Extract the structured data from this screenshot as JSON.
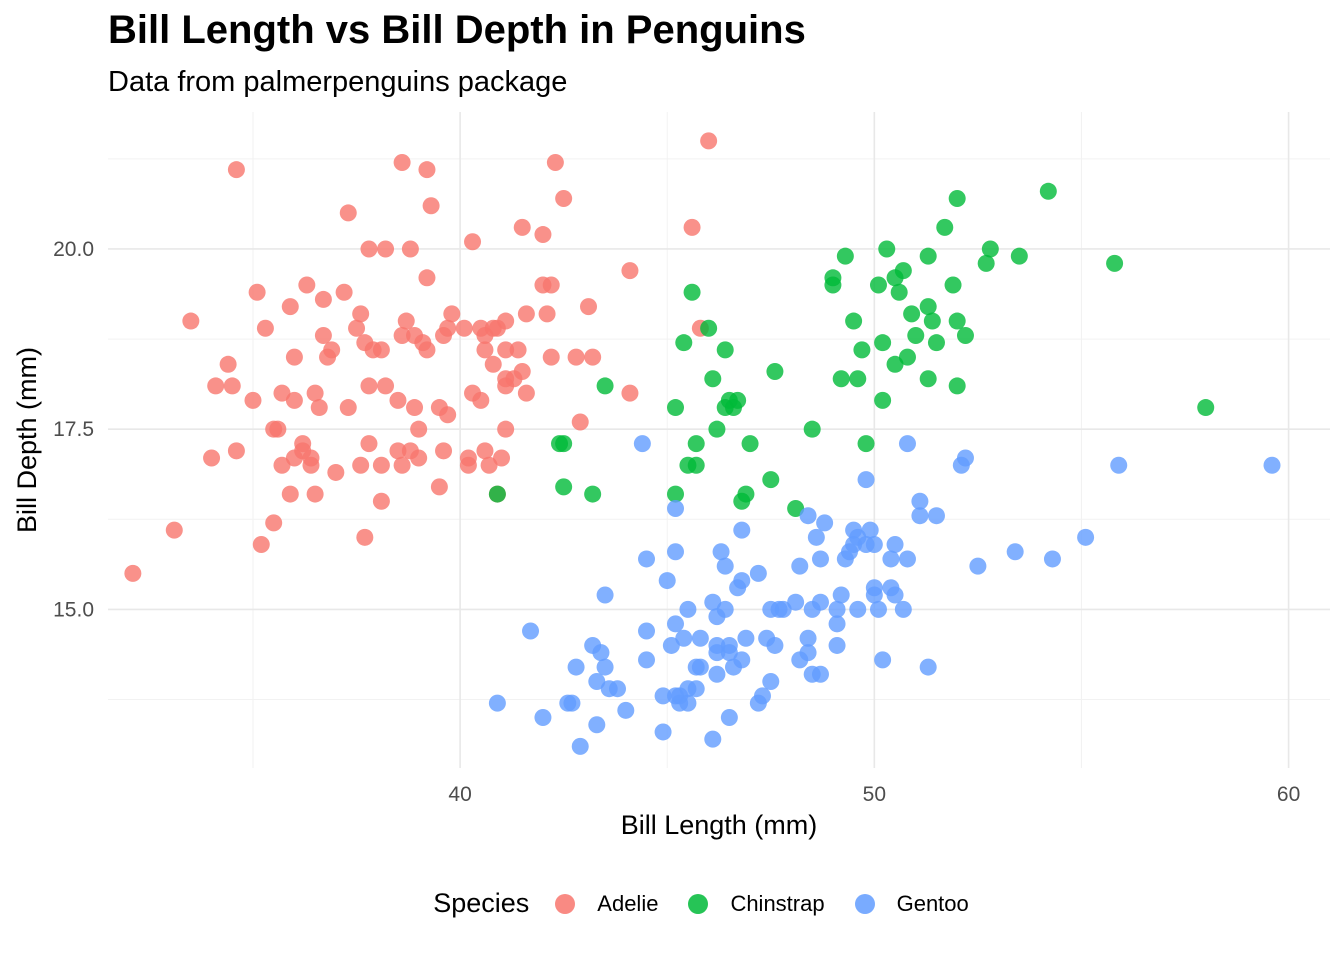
{
  "chart_data": {
    "type": "scatter",
    "title": "Bill Length vs Bill Depth in Penguins",
    "subtitle": "Data from palmerpenguins package",
    "xlabel": "Bill Length (mm)",
    "ylabel": "Bill Depth (mm)",
    "xlim": [
      31.5,
      61
    ],
    "ylim": [
      12.8,
      21.9
    ],
    "x_ticks": [
      40,
      50,
      60
    ],
    "x_tick_labels": [
      "40",
      "50",
      "60"
    ],
    "y_ticks": [
      15.0,
      17.5,
      20.0
    ],
    "y_tick_labels": [
      "15.0",
      "17.5",
      "20.0"
    ],
    "grid": true,
    "legend": {
      "title": "Species",
      "position": "bottom"
    },
    "series": [
      {
        "name": "Adelie",
        "color": "#F8766D",
        "points": [
          [
            32.1,
            15.5
          ],
          [
            33.1,
            16.1
          ],
          [
            33.5,
            19.0
          ],
          [
            34.0,
            17.1
          ],
          [
            34.1,
            18.1
          ],
          [
            34.4,
            18.4
          ],
          [
            34.5,
            18.1
          ],
          [
            34.6,
            21.1
          ],
          [
            34.6,
            17.2
          ],
          [
            35.0,
            17.9
          ],
          [
            35.1,
            19.4
          ],
          [
            35.2,
            15.9
          ],
          [
            35.3,
            18.9
          ],
          [
            35.5,
            16.2
          ],
          [
            35.5,
            17.5
          ],
          [
            35.6,
            17.5
          ],
          [
            35.7,
            17.0
          ],
          [
            35.7,
            18.0
          ],
          [
            35.9,
            16.6
          ],
          [
            35.9,
            19.2
          ],
          [
            36.0,
            17.1
          ],
          [
            36.0,
            17.9
          ],
          [
            36.0,
            18.5
          ],
          [
            36.2,
            17.2
          ],
          [
            36.2,
            17.3
          ],
          [
            36.3,
            19.5
          ],
          [
            36.4,
            17.0
          ],
          [
            36.4,
            17.1
          ],
          [
            36.5,
            16.6
          ],
          [
            36.5,
            18.0
          ],
          [
            36.6,
            17.8
          ],
          [
            36.7,
            18.8
          ],
          [
            36.7,
            19.3
          ],
          [
            36.8,
            18.5
          ],
          [
            36.9,
            18.6
          ],
          [
            37.0,
            16.9
          ],
          [
            37.2,
            19.4
          ],
          [
            37.3,
            17.8
          ],
          [
            37.3,
            20.5
          ],
          [
            37.5,
            18.9
          ],
          [
            37.6,
            17.0
          ],
          [
            37.6,
            19.1
          ],
          [
            37.7,
            16.0
          ],
          [
            37.7,
            18.7
          ],
          [
            37.8,
            17.3
          ],
          [
            37.8,
            18.1
          ],
          [
            37.8,
            20.0
          ],
          [
            37.9,
            18.6
          ],
          [
            38.1,
            16.5
          ],
          [
            38.1,
            17.0
          ],
          [
            38.1,
            18.6
          ],
          [
            38.2,
            18.1
          ],
          [
            38.2,
            20.0
          ],
          [
            38.5,
            17.2
          ],
          [
            38.5,
            17.9
          ],
          [
            38.6,
            17.0
          ],
          [
            38.6,
            18.8
          ],
          [
            38.6,
            21.2
          ],
          [
            38.7,
            19.0
          ],
          [
            38.8,
            17.2
          ],
          [
            38.8,
            20.0
          ],
          [
            38.9,
            17.8
          ],
          [
            38.9,
            18.8
          ],
          [
            39.0,
            17.1
          ],
          [
            39.0,
            17.5
          ],
          [
            39.1,
            18.7
          ],
          [
            39.2,
            18.6
          ],
          [
            39.2,
            19.6
          ],
          [
            39.2,
            21.1
          ],
          [
            39.3,
            20.6
          ],
          [
            39.5,
            16.7
          ],
          [
            39.5,
            17.8
          ],
          [
            39.6,
            17.2
          ],
          [
            39.6,
            18.8
          ],
          [
            39.7,
            17.7
          ],
          [
            39.7,
            18.9
          ],
          [
            39.8,
            19.1
          ],
          [
            40.1,
            18.9
          ],
          [
            40.2,
            17.0
          ],
          [
            40.2,
            17.1
          ],
          [
            40.3,
            18.0
          ],
          [
            40.3,
            20.1
          ],
          [
            40.5,
            17.9
          ],
          [
            40.5,
            18.9
          ],
          [
            40.6,
            17.2
          ],
          [
            40.6,
            18.6
          ],
          [
            40.6,
            18.8
          ],
          [
            40.7,
            17.0
          ],
          [
            40.8,
            18.4
          ],
          [
            40.8,
            18.9
          ],
          [
            40.9,
            16.6
          ],
          [
            40.9,
            18.9
          ],
          [
            41.0,
            17.1
          ],
          [
            41.1,
            17.5
          ],
          [
            41.1,
            18.1
          ],
          [
            41.1,
            18.2
          ],
          [
            41.1,
            18.6
          ],
          [
            41.1,
            19.0
          ],
          [
            41.3,
            18.2
          ],
          [
            41.4,
            18.6
          ],
          [
            41.5,
            18.3
          ],
          [
            41.5,
            20.3
          ],
          [
            41.6,
            19.1
          ],
          [
            41.6,
            18.0
          ],
          [
            42.0,
            19.5
          ],
          [
            42.0,
            20.2
          ],
          [
            42.1,
            19.1
          ],
          [
            42.2,
            18.5
          ],
          [
            42.2,
            19.5
          ],
          [
            42.3,
            21.2
          ],
          [
            42.5,
            20.7
          ],
          [
            42.8,
            18.5
          ],
          [
            42.9,
            17.6
          ],
          [
            43.1,
            19.2
          ],
          [
            43.2,
            18.5
          ],
          [
            44.1,
            18.0
          ],
          [
            44.1,
            19.7
          ],
          [
            45.6,
            20.3
          ],
          [
            45.8,
            18.9
          ],
          [
            46.0,
            21.5
          ]
        ]
      },
      {
        "name": "Chinstrap",
        "color": "#00BA38",
        "points": [
          [
            40.9,
            16.6
          ],
          [
            42.4,
            17.3
          ],
          [
            42.5,
            16.7
          ],
          [
            42.5,
            17.3
          ],
          [
            43.2,
            16.6
          ],
          [
            43.5,
            18.1
          ],
          [
            45.2,
            17.8
          ],
          [
            45.2,
            16.6
          ],
          [
            45.4,
            18.7
          ],
          [
            45.5,
            17.0
          ],
          [
            45.6,
            19.4
          ],
          [
            45.7,
            17.3
          ],
          [
            45.7,
            17.0
          ],
          [
            46.0,
            18.9
          ],
          [
            46.1,
            18.2
          ],
          [
            46.2,
            17.5
          ],
          [
            46.4,
            18.6
          ],
          [
            46.4,
            17.8
          ],
          [
            46.5,
            17.9
          ],
          [
            46.6,
            17.8
          ],
          [
            46.7,
            17.9
          ],
          [
            46.8,
            16.5
          ],
          [
            46.9,
            16.6
          ],
          [
            47.0,
            17.3
          ],
          [
            47.5,
            16.8
          ],
          [
            47.6,
            18.3
          ],
          [
            48.1,
            16.4
          ],
          [
            48.5,
            17.5
          ],
          [
            49.0,
            19.5
          ],
          [
            49.0,
            19.6
          ],
          [
            49.2,
            18.2
          ],
          [
            49.3,
            19.9
          ],
          [
            49.5,
            19.0
          ],
          [
            49.6,
            18.2
          ],
          [
            49.7,
            18.6
          ],
          [
            49.8,
            17.3
          ],
          [
            50.1,
            19.5
          ],
          [
            50.2,
            18.7
          ],
          [
            50.2,
            17.9
          ],
          [
            50.3,
            20.0
          ],
          [
            50.5,
            18.4
          ],
          [
            50.5,
            19.6
          ],
          [
            50.6,
            19.4
          ],
          [
            50.7,
            19.7
          ],
          [
            50.8,
            18.5
          ],
          [
            50.9,
            19.1
          ],
          [
            51.0,
            18.8
          ],
          [
            51.3,
            19.2
          ],
          [
            51.3,
            19.9
          ],
          [
            51.3,
            18.2
          ],
          [
            51.4,
            19.0
          ],
          [
            51.5,
            18.7
          ],
          [
            51.7,
            20.3
          ],
          [
            51.9,
            19.5
          ],
          [
            52.0,
            18.1
          ],
          [
            52.0,
            19.0
          ],
          [
            52.0,
            20.7
          ],
          [
            52.2,
            18.8
          ],
          [
            52.7,
            19.8
          ],
          [
            52.8,
            20.0
          ],
          [
            53.5,
            19.9
          ],
          [
            54.2,
            20.8
          ],
          [
            55.8,
            19.8
          ],
          [
            58.0,
            17.8
          ]
        ]
      },
      {
        "name": "Gentoo",
        "color": "#619CFF",
        "points": [
          [
            40.9,
            13.7
          ],
          [
            41.7,
            14.7
          ],
          [
            42.0,
            13.5
          ],
          [
            42.6,
            13.7
          ],
          [
            42.7,
            13.7
          ],
          [
            42.8,
            14.2
          ],
          [
            42.9,
            13.1
          ],
          [
            43.2,
            14.5
          ],
          [
            43.3,
            13.4
          ],
          [
            43.3,
            14.0
          ],
          [
            43.4,
            14.4
          ],
          [
            43.5,
            14.2
          ],
          [
            43.5,
            15.2
          ],
          [
            43.6,
            13.9
          ],
          [
            43.8,
            13.9
          ],
          [
            44.0,
            13.6
          ],
          [
            44.4,
            17.3
          ],
          [
            44.5,
            14.3
          ],
          [
            44.5,
            14.7
          ],
          [
            44.5,
            15.7
          ],
          [
            44.9,
            13.3
          ],
          [
            44.9,
            13.8
          ],
          [
            45.0,
            15.4
          ],
          [
            45.1,
            14.5
          ],
          [
            45.2,
            13.8
          ],
          [
            45.2,
            14.8
          ],
          [
            45.2,
            15.8
          ],
          [
            45.2,
            16.4
          ],
          [
            45.3,
            13.7
          ],
          [
            45.3,
            13.8
          ],
          [
            45.4,
            14.6
          ],
          [
            45.5,
            13.7
          ],
          [
            45.5,
            13.9
          ],
          [
            45.5,
            15.0
          ],
          [
            45.7,
            13.9
          ],
          [
            45.7,
            14.2
          ],
          [
            45.8,
            14.2
          ],
          [
            45.8,
            14.6
          ],
          [
            46.1,
            13.2
          ],
          [
            46.1,
            15.1
          ],
          [
            46.2,
            14.1
          ],
          [
            46.2,
            14.4
          ],
          [
            46.2,
            14.5
          ],
          [
            46.2,
            14.9
          ],
          [
            46.3,
            15.8
          ],
          [
            46.4,
            15.0
          ],
          [
            46.4,
            15.6
          ],
          [
            46.5,
            13.5
          ],
          [
            46.5,
            14.4
          ],
          [
            46.5,
            14.5
          ],
          [
            46.6,
            14.2
          ],
          [
            46.7,
            15.3
          ],
          [
            46.8,
            14.3
          ],
          [
            46.8,
            15.4
          ],
          [
            46.8,
            16.1
          ],
          [
            46.9,
            14.6
          ],
          [
            47.2,
            13.7
          ],
          [
            47.2,
            15.5
          ],
          [
            47.3,
            13.8
          ],
          [
            47.4,
            14.6
          ],
          [
            47.5,
            14.0
          ],
          [
            47.5,
            15.0
          ],
          [
            47.6,
            14.5
          ],
          [
            47.7,
            15.0
          ],
          [
            47.8,
            15.0
          ],
          [
            48.1,
            15.1
          ],
          [
            48.2,
            14.3
          ],
          [
            48.2,
            15.6
          ],
          [
            48.4,
            14.4
          ],
          [
            48.4,
            14.6
          ],
          [
            48.4,
            16.3
          ],
          [
            48.5,
            14.1
          ],
          [
            48.5,
            15.0
          ],
          [
            48.6,
            16.0
          ],
          [
            48.7,
            14.1
          ],
          [
            48.7,
            15.1
          ],
          [
            48.7,
            15.7
          ],
          [
            48.8,
            16.2
          ],
          [
            49.1,
            14.5
          ],
          [
            49.1,
            14.8
          ],
          [
            49.1,
            15.0
          ],
          [
            49.2,
            15.2
          ],
          [
            49.3,
            15.7
          ],
          [
            49.4,
            15.8
          ],
          [
            49.5,
            15.9
          ],
          [
            49.5,
            16.1
          ],
          [
            49.6,
            15.0
          ],
          [
            49.6,
            16.0
          ],
          [
            49.8,
            15.9
          ],
          [
            49.8,
            16.8
          ],
          [
            49.9,
            16.1
          ],
          [
            50.0,
            15.2
          ],
          [
            50.0,
            15.3
          ],
          [
            50.0,
            15.9
          ],
          [
            50.1,
            15.0
          ],
          [
            50.2,
            14.3
          ],
          [
            50.4,
            15.3
          ],
          [
            50.4,
            15.7
          ],
          [
            50.5,
            15.2
          ],
          [
            50.5,
            15.9
          ],
          [
            50.7,
            15.0
          ],
          [
            50.8,
            15.7
          ],
          [
            50.8,
            17.3
          ],
          [
            51.1,
            16.3
          ],
          [
            51.1,
            16.5
          ],
          [
            51.3,
            14.2
          ],
          [
            51.5,
            16.3
          ],
          [
            52.1,
            17.0
          ],
          [
            52.2,
            17.1
          ],
          [
            52.5,
            15.6
          ],
          [
            53.4,
            15.8
          ],
          [
            54.3,
            15.7
          ],
          [
            55.1,
            16.0
          ],
          [
            55.9,
            17.0
          ],
          [
            59.6,
            17.0
          ]
        ]
      }
    ]
  }
}
